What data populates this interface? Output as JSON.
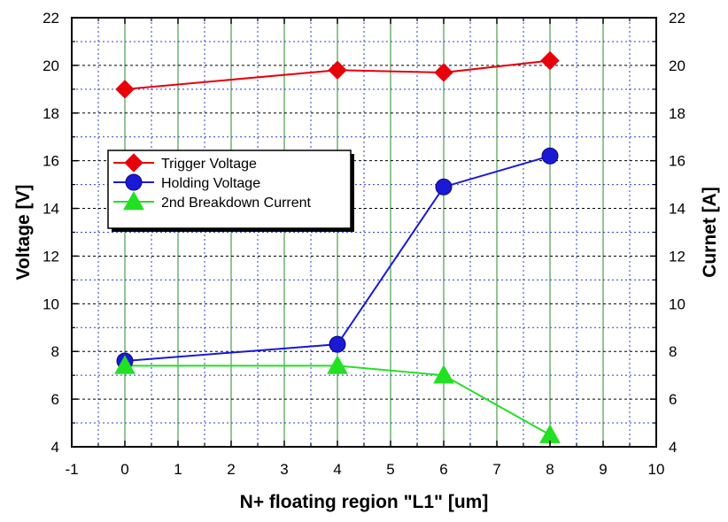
{
  "chart_data": {
    "type": "line",
    "xlabel": "N+ floating region \"L1\" [um]",
    "ylabel_left": "Voltage [V]",
    "ylabel_right": "Curnet [A]",
    "xlim": [
      -1,
      10
    ],
    "ylim": [
      4,
      22
    ],
    "y2lim": [
      4,
      22
    ],
    "x_ticks": [
      -1,
      0,
      1,
      2,
      3,
      4,
      5,
      6,
      7,
      8,
      9,
      10
    ],
    "y_ticks": [
      4,
      6,
      8,
      10,
      12,
      14,
      16,
      18,
      20,
      22
    ],
    "grid": true,
    "legend_position": "center-left",
    "x": [
      0,
      4,
      6,
      8
    ],
    "series": [
      {
        "name": "Trigger Voltage",
        "axis": "left",
        "marker": "diamond",
        "color": "#e8000b",
        "values": [
          19.0,
          19.8,
          19.7,
          20.2
        ]
      },
      {
        "name": "Holding Voltage",
        "axis": "left",
        "marker": "circle",
        "color": "#1a1ad4",
        "values": [
          7.6,
          8.3,
          14.9,
          16.2
        ]
      },
      {
        "name": "2nd Breakdown Current",
        "axis": "right",
        "marker": "triangle",
        "color": "#22e022",
        "values": [
          7.4,
          7.4,
          7.0,
          4.5
        ]
      }
    ]
  }
}
